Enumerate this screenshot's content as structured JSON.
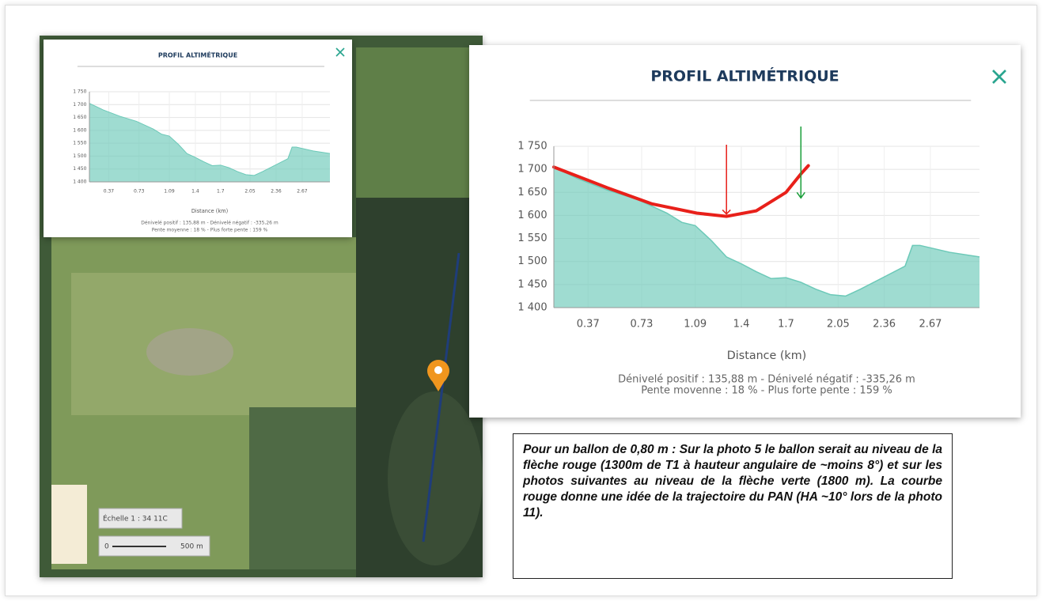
{
  "chart_data": [
    {
      "type": "area",
      "title": "PROFIL ALTIMÉTRIQUE",
      "x_label": "Distance (km)",
      "footer": [
        "Dénivelé positif : 135,88 m - Dénivelé négatif : -335,26 m",
        "Pente moyenne : 18 % - Plus forte pente : 159 %"
      ],
      "xlim": [
        0.14,
        3.0
      ],
      "xticks": [
        0.37,
        0.73,
        1.09,
        1.4,
        1.7,
        2.05,
        2.36,
        2.67
      ],
      "ylim": [
        1400,
        1750
      ],
      "yticks": [
        {
          "value": 1400,
          "label": "1 400"
        },
        {
          "value": 1450,
          "label": "1 450"
        },
        {
          "value": 1500,
          "label": "1 500"
        },
        {
          "value": 1550,
          "label": "1 550"
        },
        {
          "value": 1600,
          "label": "1 600"
        },
        {
          "value": 1650,
          "label": "1 650"
        },
        {
          "value": 1700,
          "label": "1 700"
        },
        {
          "value": 1750,
          "label": "1 750"
        }
      ],
      "grid": true,
      "series": [
        {
          "type": "area",
          "color": "#6cc9b8",
          "x": [
            0.14,
            0.3,
            0.5,
            0.7,
            0.9,
            1.0,
            1.09,
            1.2,
            1.3,
            1.4,
            1.5,
            1.6,
            1.7,
            1.8,
            1.9,
            2.0,
            2.1,
            2.2,
            2.35,
            2.5,
            2.55,
            2.6,
            2.8,
            3.0
          ],
          "values": [
            1705,
            1680,
            1655,
            1635,
            1605,
            1585,
            1578,
            1545,
            1510,
            1495,
            1478,
            1463,
            1465,
            1455,
            1440,
            1428,
            1425,
            1440,
            1465,
            1490,
            1535,
            1535,
            1520,
            1510
          ]
        }
      ]
    },
    {
      "type": "area",
      "title": "PROFIL ALTIMÉTRIQUE",
      "x_label": "Distance (km)",
      "footer": [
        "Dénivelé positif : 135,88 m - Dénivelé négatif : -335,26 m",
        "Pente movenne : 18 % - Plus forte pente : 159 %"
      ],
      "xlim": [
        0.14,
        3.0
      ],
      "xticks": [
        0.37,
        0.73,
        1.09,
        1.4,
        1.7,
        2.05,
        2.36,
        2.67
      ],
      "ylim": [
        1400,
        1750
      ],
      "yticks": [
        {
          "value": 1400,
          "label": "1 400"
        },
        {
          "value": 1450,
          "label": "1 450"
        },
        {
          "value": 1500,
          "label": "1 500"
        },
        {
          "value": 1550,
          "label": "1 550"
        },
        {
          "value": 1600,
          "label": "1 600"
        },
        {
          "value": 1650,
          "label": "1 650"
        },
        {
          "value": 1700,
          "label": "1 700"
        },
        {
          "value": 1750,
          "label": "1 750"
        }
      ],
      "grid": true,
      "series": [
        {
          "type": "area",
          "color": "#6cc9b8",
          "x": [
            0.14,
            0.3,
            0.5,
            0.7,
            0.9,
            1.0,
            1.09,
            1.2,
            1.3,
            1.4,
            1.5,
            1.6,
            1.7,
            1.8,
            1.9,
            2.0,
            2.1,
            2.2,
            2.35,
            2.5,
            2.55,
            2.6,
            2.8,
            3.0
          ],
          "values": [
            1705,
            1680,
            1655,
            1635,
            1605,
            1585,
            1578,
            1545,
            1510,
            1495,
            1478,
            1463,
            1465,
            1455,
            1440,
            1428,
            1425,
            1440,
            1465,
            1490,
            1535,
            1535,
            1520,
            1510
          ]
        },
        {
          "type": "line",
          "color": "#e8201a",
          "x": [
            0.14,
            0.5,
            0.8,
            1.1,
            1.3,
            1.5,
            1.7,
            1.8,
            1.85
          ],
          "values": [
            1705,
            1660,
            1625,
            1605,
            1598,
            1610,
            1650,
            1690,
            1708
          ]
        }
      ]
    }
  ],
  "map": {
    "scale_label": "Échelle 1 : 34 11C",
    "scale_zero": "0",
    "scale_distance": "500 m"
  },
  "note": "Pour un ballon de 0,80 m : Sur la photo 5 le ballon serait au niveau de la flèche rouge (1300m de T1 à hauteur angulaire de ~moins 8°) et sur les photos suivantes au niveau de la flèche verte (1800 m). La courbe rouge donne une idée de la trajectoire du PAN (HA ~10° lors de la photo 11)."
}
